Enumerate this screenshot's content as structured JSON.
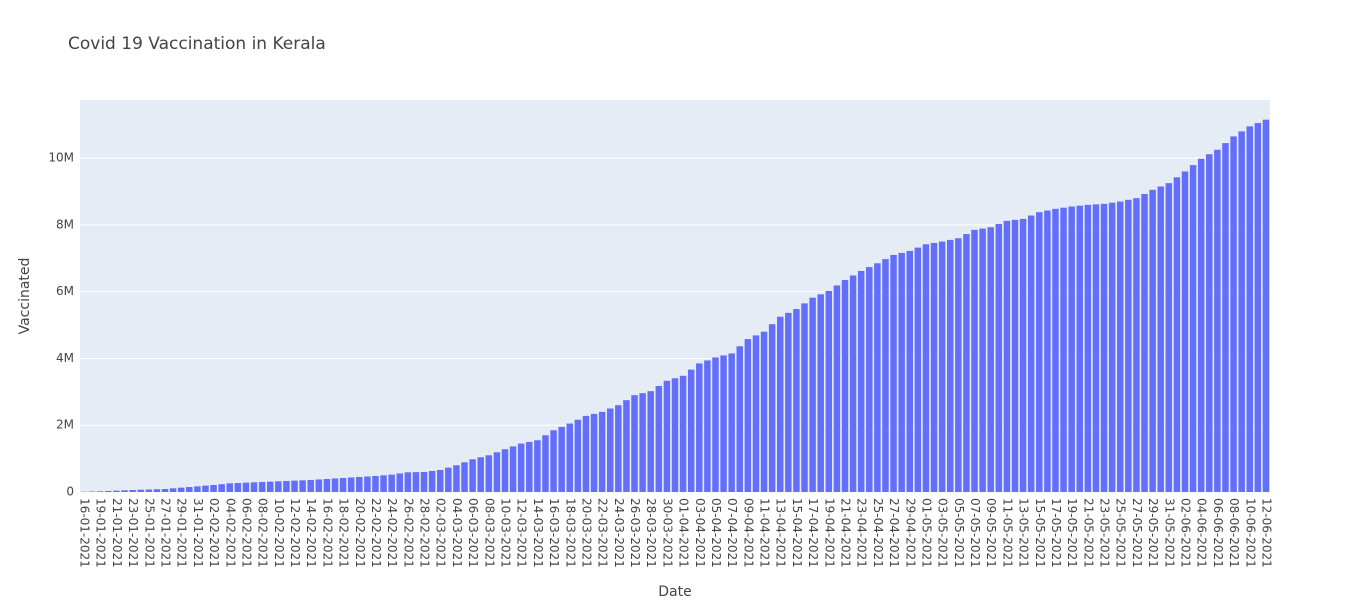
{
  "chart_data": {
    "type": "bar",
    "title": "Covid 19 Vaccination in Kerala",
    "x_label": "Date",
    "y_label": "Vaccinated",
    "color": "#636efa",
    "grid": true,
    "categories": [
      "16-01-2021",
      null,
      "19-01-2021",
      null,
      "21-01-2021",
      null,
      "23-01-2021",
      null,
      "25-01-2021",
      null,
      "27-01-2021",
      null,
      "29-01-2021",
      null,
      "31-01-2021",
      null,
      "02-02-2021",
      null,
      "04-02-2021",
      null,
      "06-02-2021",
      null,
      "08-02-2021",
      null,
      "10-02-2021",
      null,
      "12-02-2021",
      null,
      "14-02-2021",
      null,
      "16-02-2021",
      null,
      "18-02-2021",
      null,
      "20-02-2021",
      null,
      "22-02-2021",
      null,
      "24-02-2021",
      null,
      "26-02-2021",
      null,
      "28-02-2021",
      null,
      "02-03-2021",
      null,
      "04-03-2021",
      null,
      "06-03-2021",
      null,
      "08-03-2021",
      null,
      "10-03-2021",
      null,
      "12-03-2021",
      null,
      "14-03-2021",
      null,
      "16-03-2021",
      null,
      "18-03-2021",
      null,
      "20-03-2021",
      null,
      "22-03-2021",
      null,
      "24-03-2021",
      null,
      "26-03-2021",
      null,
      "28-03-2021",
      null,
      "30-03-2021",
      null,
      "01-04-2021",
      null,
      "03-04-2021",
      null,
      "05-04-2021",
      null,
      "07-04-2021",
      null,
      "09-04-2021",
      null,
      "11-04-2021",
      null,
      "13-04-2021",
      null,
      "15-04-2021",
      null,
      "17-04-2021",
      null,
      "19-04-2021",
      null,
      "21-04-2021",
      null,
      "23-04-2021",
      null,
      "25-04-2021",
      null,
      "27-04-2021",
      null,
      "29-04-2021",
      null,
      "01-05-2021",
      null,
      "03-05-2021",
      null,
      "05-05-2021",
      null,
      "07-05-2021",
      null,
      "09-05-2021",
      null,
      "11-05-2021",
      null,
      "13-05-2021",
      null,
      "15-05-2021",
      null,
      "17-05-2021",
      null,
      "19-05-2021",
      null,
      "21-05-2021",
      null,
      "23-05-2021",
      null,
      "25-05-2021",
      null,
      "27-05-2021",
      null,
      "29-05-2021",
      null,
      "31-05-2021",
      null,
      "02-06-2021",
      null,
      "04-06-2021",
      null,
      "06-06-2021",
      null,
      "08-06-2021",
      null,
      "10-06-2021",
      null,
      "12-06-2021"
    ],
    "values": [
      9000,
      15000,
      20000,
      30000,
      40000,
      50000,
      60000,
      68000,
      75000,
      82000,
      90000,
      110000,
      130000,
      150000,
      170000,
      190000,
      210000,
      235000,
      260000,
      270000,
      280000,
      290000,
      300000,
      310000,
      320000,
      330000,
      340000,
      350000,
      360000,
      375000,
      390000,
      405000,
      420000,
      435000,
      450000,
      465000,
      480000,
      500000,
      520000,
      555000,
      590000,
      595000,
      600000,
      630000,
      660000,
      730000,
      800000,
      890000,
      980000,
      1040000,
      1100000,
      1190000,
      1280000,
      1365000,
      1450000,
      1500000,
      1550000,
      1700000,
      1850000,
      1950000,
      2050000,
      2165000,
      2280000,
      2340000,
      2400000,
      2500000,
      2600000,
      2750000,
      2900000,
      2960000,
      3020000,
      3175000,
      3330000,
      3405000,
      3480000,
      3665000,
      3850000,
      3940000,
      4030000,
      4090000,
      4150000,
      4365000,
      4580000,
      4690000,
      4800000,
      5025000,
      5250000,
      5365000,
      5480000,
      5650000,
      5820000,
      5920000,
      6020000,
      6185000,
      6350000,
      6485000,
      6620000,
      6735000,
      6850000,
      6975000,
      7100000,
      7160000,
      7220000,
      7320000,
      7420000,
      7460000,
      7500000,
      7550000,
      7600000,
      7725000,
      7850000,
      7890000,
      7930000,
      8025000,
      8120000,
      8150000,
      8180000,
      8280000,
      8380000,
      8430000,
      8480000,
      8515000,
      8550000,
      8575000,
      8600000,
      8615000,
      8630000,
      8665000,
      8700000,
      8750000,
      8800000,
      8925000,
      9050000,
      9150000,
      9250000,
      9425000,
      9600000,
      9790000,
      9980000,
      10115000,
      10250000,
      10450000,
      10650000,
      10800000,
      10950000,
      11050000,
      11150000
    ],
    "ylim": [
      0,
      11740000
    ],
    "yticks": [
      0,
      {
        "value": 2000000,
        "label": "2M"
      },
      {
        "value": 4000000,
        "label": "4M"
      },
      {
        "value": 6000000,
        "label": "6M"
      },
      {
        "value": 8000000,
        "label": "8M"
      },
      {
        "value": 10000000,
        "label": "10M"
      }
    ]
  }
}
